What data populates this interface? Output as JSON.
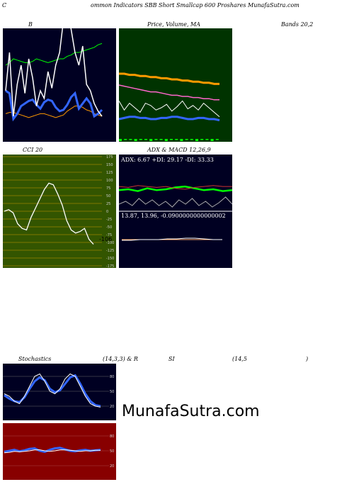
{
  "header": {
    "left": "C",
    "title": "ommon  Indicators SBB Short Smallcap 600  Proshares MunafaSutra.com"
  },
  "labels": {
    "b": "B",
    "price": "Price,  Volume, MA",
    "bands": "Bands 20,2",
    "cci": "CCI 20",
    "adx": "ADX  & MACD 12,26,9",
    "adx_values": "ADX: 6.67  +DI: 29.17 -DI: 33.33",
    "macd_values": "13.87,  13.96,  -0.0900000000000002",
    "stoch": "Stochastics",
    "stoch_params": "(14,3,3) & R",
    "rsi": "SI",
    "rsi_params": "(14,5",
    "close_paren": ")",
    "cci_last": "-106",
    "brand": "MunafaSutra.com"
  },
  "colors": {
    "navy": "#000022",
    "green_dark": "#003300",
    "olive": "#335500",
    "red_dark": "#880000",
    "white": "#ffffff",
    "blue": "#3366ff",
    "orange": "#ff9900",
    "bright_green": "#00ff00",
    "pink": "#ff66cc"
  },
  "chart_data": [
    {
      "type": "line",
      "name": "bollinger-bands",
      "series": [
        {
          "values": [
            40,
            38,
            18,
            22,
            28,
            30,
            32,
            33,
            29,
            26,
            31,
            33,
            32,
            27,
            24,
            25,
            29,
            35,
            38,
            26,
            30,
            34,
            30,
            20,
            22,
            25
          ]
        },
        {
          "values": [
            60,
            62,
            65,
            64,
            63,
            62,
            62,
            63,
            65,
            64,
            63,
            62,
            63,
            64,
            65,
            65,
            67,
            68,
            70,
            70,
            71,
            72,
            73,
            74,
            76,
            77
          ]
        },
        {
          "values": [
            22,
            23,
            23,
            22,
            21,
            20,
            19,
            20,
            21,
            22,
            22,
            21,
            20,
            19,
            20,
            21,
            24,
            26,
            28,
            28,
            27,
            25,
            24,
            22,
            21,
            20
          ]
        }
      ]
    },
    {
      "type": "line",
      "name": "price-volume-ma",
      "series": [
        {
          "values": [
            60,
            60,
            59,
            59,
            58,
            58,
            57,
            57,
            56,
            56,
            55,
            55,
            54,
            54,
            53,
            53,
            52,
            52,
            51,
            51
          ]
        },
        {
          "values": [
            50,
            49,
            48,
            47,
            46,
            45,
            44,
            44,
            43,
            42,
            41,
            41,
            40,
            40,
            39,
            39,
            38,
            38,
            37,
            37
          ]
        },
        {
          "values": [
            20,
            21,
            22,
            22,
            21,
            21,
            20,
            20,
            21,
            21,
            22,
            22,
            21,
            20,
            20,
            21,
            21,
            20,
            20,
            19
          ]
        }
      ]
    },
    {
      "type": "line",
      "name": "cci",
      "ylim": [
        -175,
        175
      ],
      "yticks": [
        175,
        150,
        125,
        100,
        75,
        50,
        25,
        0,
        -25,
        -50,
        -75,
        -100,
        -125,
        -150,
        -175
      ],
      "values": [
        0,
        5,
        -5,
        -40,
        -55,
        -60,
        -20,
        10,
        40,
        70,
        90,
        85,
        55,
        20,
        -30,
        -60,
        -70,
        -65,
        -55,
        -90,
        -106
      ]
    },
    {
      "type": "line",
      "name": "adx-macd",
      "series": [
        {
          "values": [
            29,
            30,
            28,
            31,
            29,
            30,
            32,
            33,
            31,
            29,
            30,
            28,
            29
          ]
        },
        {
          "values": [
            33,
            32,
            34,
            33,
            32,
            33,
            31,
            30,
            32,
            33,
            34,
            33,
            33
          ]
        }
      ]
    },
    {
      "type": "line",
      "name": "stochastics",
      "ylim": [
        0,
        100
      ],
      "yticks": [
        80,
        50,
        20
      ],
      "series": [
        {
          "values": [
            45,
            40,
            30,
            25,
            40,
            60,
            80,
            85,
            70,
            50,
            45,
            55,
            75,
            85,
            80,
            60,
            40,
            25,
            20,
            18
          ]
        },
        {
          "values": [
            42,
            35,
            30,
            28,
            38,
            55,
            70,
            78,
            72,
            55,
            48,
            52,
            65,
            78,
            82,
            65,
            45,
            30,
            22,
            20
          ]
        }
      ]
    },
    {
      "type": "line",
      "name": "rsi",
      "ylim": [
        0,
        100
      ],
      "yticks": [
        80,
        50,
        20
      ],
      "series": [
        {
          "values": [
            48,
            50,
            52,
            49,
            51,
            54,
            55,
            50,
            48,
            52,
            55,
            56,
            53,
            50,
            49,
            51,
            52,
            50,
            51,
            52
          ]
        },
        {
          "values": [
            46,
            47,
            49,
            48,
            49,
            50,
            52,
            52,
            50,
            49,
            50,
            52,
            52,
            51,
            50,
            49,
            50,
            50,
            51,
            51
          ]
        }
      ]
    }
  ]
}
